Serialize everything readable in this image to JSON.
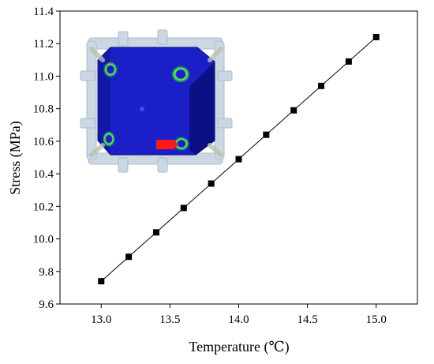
{
  "chart_data": {
    "type": "line",
    "xlabel": "Temperature (℃)",
    "ylabel": "Stress (MPa)",
    "xlim": [
      12.7,
      15.3
    ],
    "ylim": [
      9.6,
      11.4
    ],
    "x_ticks": [
      "13.0",
      "13.5",
      "14.0",
      "14.5",
      "15.0"
    ],
    "y_ticks": [
      "9.6",
      "9.8",
      "10.0",
      "10.2",
      "10.4",
      "10.6",
      "10.8",
      "11.0",
      "11.2",
      "11.4"
    ],
    "grid": false,
    "marker": "square",
    "series": [
      {
        "x": [
          13.0,
          13.2,
          13.4,
          13.6,
          13.8,
          14.0,
          14.2,
          14.4,
          14.6,
          14.8,
          15.0
        ],
        "y": [
          9.74,
          9.89,
          10.04,
          10.19,
          10.34,
          10.49,
          10.64,
          10.79,
          10.94,
          11.09,
          11.24
        ]
      }
    ],
    "inset": {
      "description_icon": "fem-cube-model-image",
      "colors": {
        "cube_body": "#1b1fc8",
        "cube_dark": "#0a0e78",
        "frame": "#c9d6e2",
        "hotspot": "#39d04a",
        "red_patch": "#ff1a1a"
      }
    }
  }
}
